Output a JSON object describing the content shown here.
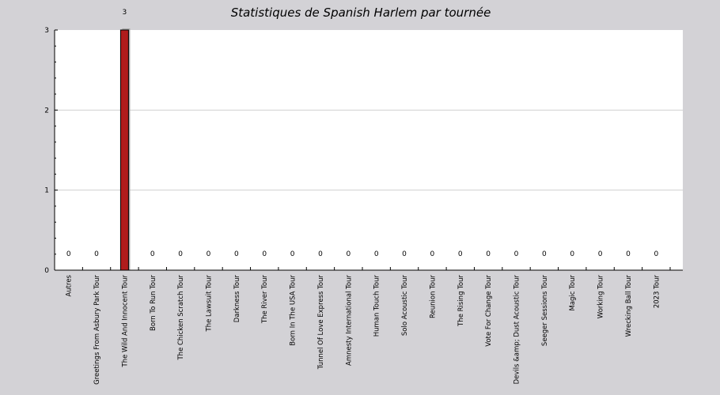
{
  "chart_data": {
    "type": "bar",
    "title": "Statistiques de Spanish Harlem par tournée",
    "xlabel": "",
    "ylabel": "",
    "ylim": [
      0,
      3
    ],
    "y_ticks": [
      "0",
      "1",
      "2",
      "3"
    ],
    "grid": true,
    "categories": [
      "Autres",
      "Greetings From Asbury Park Tour",
      "The Wild And Innocent Tour",
      "Born To Run Tour",
      "The Chicken Scratch Tour",
      "The Lawsuit Tour",
      "Darkness Tour",
      "The River Tour",
      "Born In The USA Tour",
      "Tunnel Of Love Express Tour",
      "Amnesty International Tour",
      "Human Touch Tour",
      "Solo Acoustic Tour",
      "Reunion Tour",
      "The Rising Tour",
      "Vote For Change Tour",
      "Devils &amp; Dust Acoustic Tour",
      "Seeger Sessions Tour",
      "Magic Tour",
      "Working Tour",
      "Wrecking Ball Tour",
      "2023 Tour"
    ],
    "values": [
      0,
      0,
      3,
      0,
      0,
      0,
      0,
      0,
      0,
      0,
      0,
      0,
      0,
      0,
      0,
      0,
      0,
      0,
      0,
      0,
      0,
      0
    ],
    "data_labels": [
      "0",
      "0",
      "3",
      "0",
      "0",
      "0",
      "0",
      "0",
      "0",
      "0",
      "0",
      "0",
      "0",
      "0",
      "0",
      "0",
      "0",
      "0",
      "0",
      "0",
      "0",
      "0"
    ],
    "colors": {
      "bar": "#b01c1c",
      "bar_shadow": "#a8a8a8",
      "background": "#d3d2d6",
      "plot": "#ffffff",
      "grid": "#d0d0d0"
    }
  }
}
